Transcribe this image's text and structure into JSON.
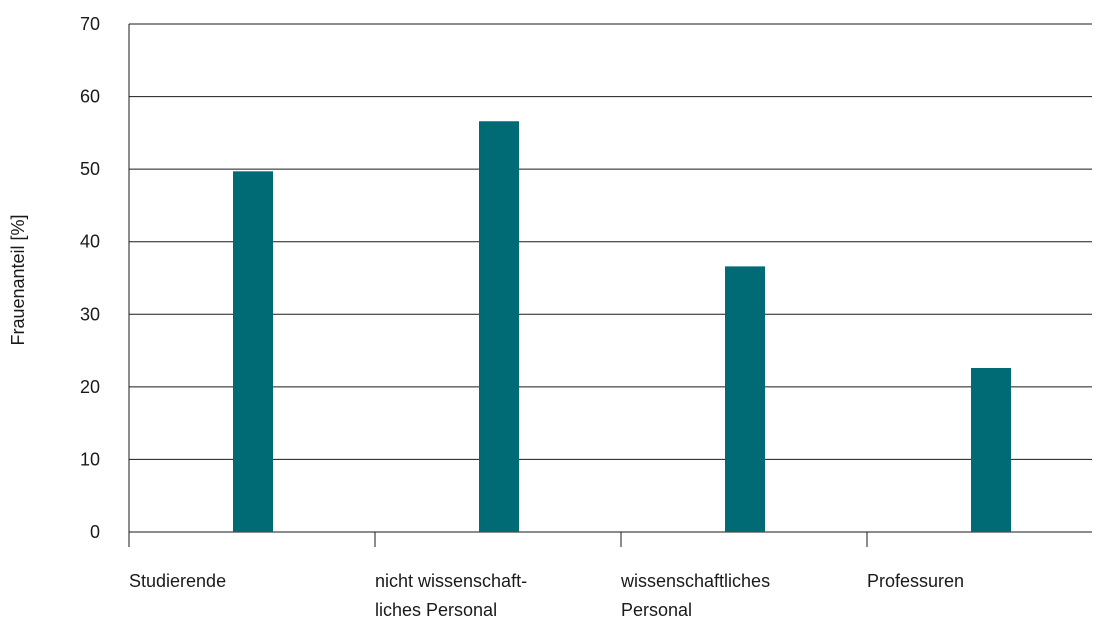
{
  "chart_data": {
    "type": "bar",
    "categories": [
      [
        "Studierende"
      ],
      [
        "nicht wissenschaft-",
        "liches Personal"
      ],
      [
        "wissenschaftliches",
        "Personal"
      ],
      [
        "Professuren"
      ]
    ],
    "values": [
      49.7,
      56.6,
      36.6,
      22.6
    ],
    "ylabel": "Frauenanteil [%]",
    "xlabel": "",
    "title": "",
    "ylim": [
      0,
      70
    ],
    "yticks": [
      0,
      10,
      20,
      30,
      40,
      50,
      60,
      70
    ],
    "grid": true,
    "bar_color": "#006b74",
    "grid_color": "#1a1a1a"
  }
}
